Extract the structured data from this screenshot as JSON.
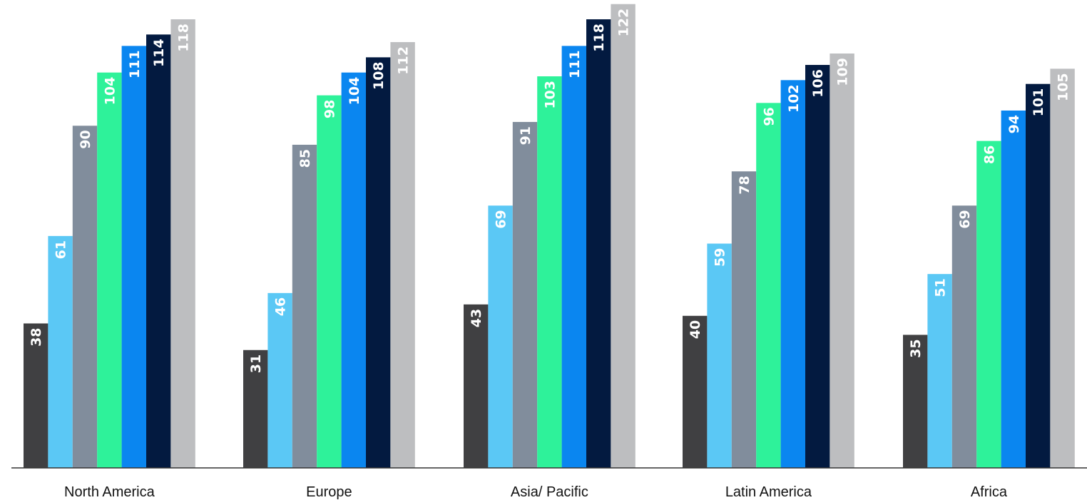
{
  "chart_data": {
    "type": "bar",
    "categories": [
      "North America",
      "Europe",
      "Asia/ Pacific",
      "Latin America",
      "Africa"
    ],
    "series": [
      {
        "values": [
          38,
          31,
          43,
          40,
          35
        ],
        "color": "#404042"
      },
      {
        "values": [
          61,
          46,
          69,
          59,
          51
        ],
        "color": "#5BC8F5"
      },
      {
        "values": [
          90,
          85,
          91,
          78,
          69
        ],
        "color": "#818D9C"
      },
      {
        "values": [
          104,
          98,
          103,
          96,
          86
        ],
        "color": "#2EF29A"
      },
      {
        "values": [
          111,
          104,
          111,
          102,
          94
        ],
        "color": "#0A86F0"
      },
      {
        "values": [
          114,
          108,
          118,
          106,
          101
        ],
        "color": "#031A40"
      },
      {
        "values": [
          118,
          112,
          122,
          109,
          105
        ],
        "color": "#BDBEC0"
      }
    ],
    "ylim": [
      0,
      123
    ],
    "grid": false,
    "legend": "none",
    "data_labels": "inside-top-rotated"
  }
}
